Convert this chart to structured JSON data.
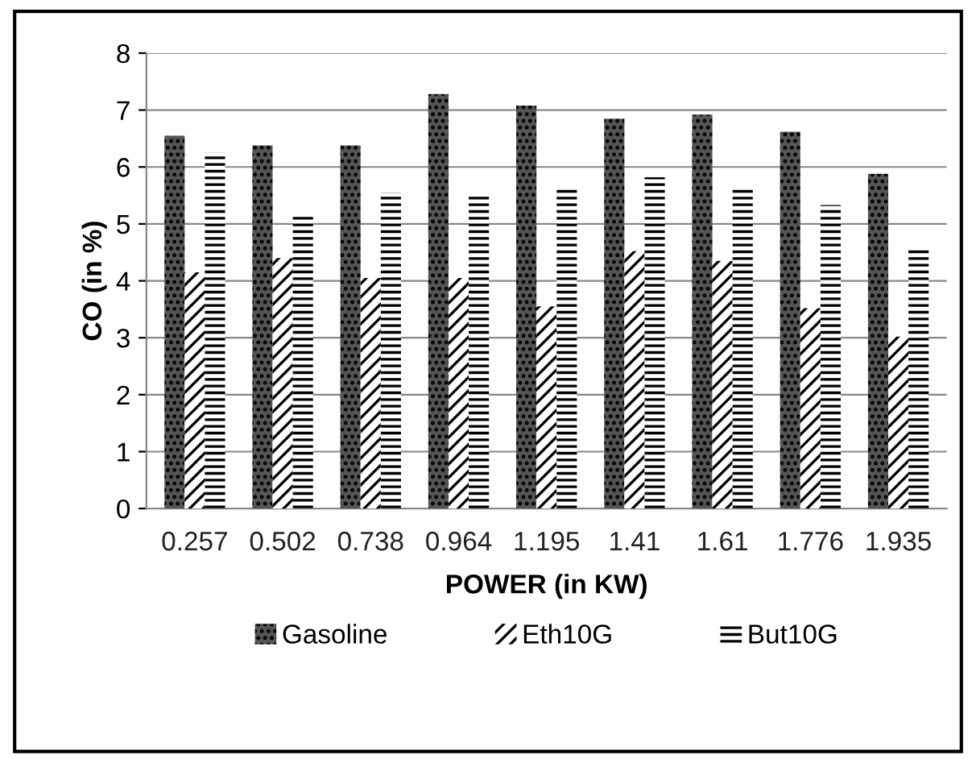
{
  "chart_data": {
    "type": "bar",
    "xlabel": "POWER (in KW)",
    "ylabel": "CO (in %)",
    "categories": [
      "0.257",
      "0.502",
      "0.738",
      "0.964",
      "1.195",
      "1.41",
      "1.61",
      "1.776",
      "1.935"
    ],
    "series": [
      {
        "name": "Gasoline",
        "color": "#555555",
        "values": [
          6.55,
          6.38,
          6.38,
          7.28,
          7.08,
          6.85,
          6.92,
          6.62,
          5.88
        ]
      },
      {
        "name": "Eth10G",
        "color": "#ffffff",
        "values": [
          4.15,
          4.4,
          4.05,
          4.05,
          3.55,
          4.52,
          4.35,
          3.52,
          3.02
        ]
      },
      {
        "name": "But10G",
        "color": "#ffffff",
        "values": [
          6.25,
          5.17,
          5.55,
          5.5,
          5.65,
          5.82,
          5.65,
          5.33,
          4.6
        ]
      }
    ],
    "ylim": [
      0,
      8
    ],
    "yticks": [
      0,
      1,
      2,
      3,
      4,
      5,
      6,
      7,
      8
    ],
    "grid": "y",
    "legend": "bottom"
  }
}
